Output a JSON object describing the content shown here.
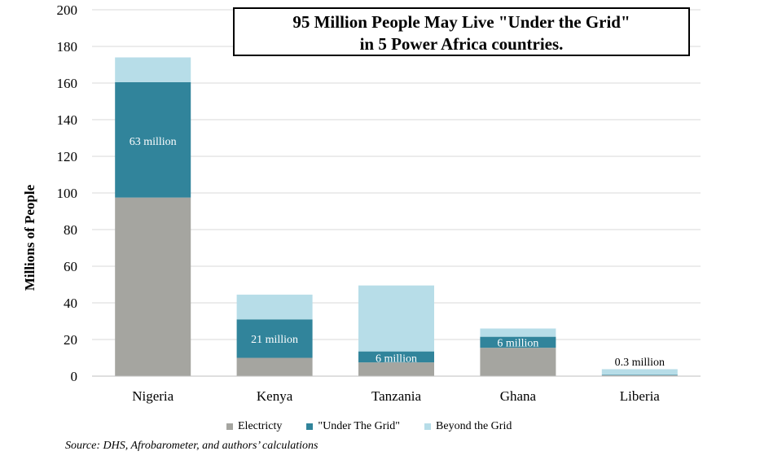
{
  "chart_data": {
    "type": "bar",
    "stacked": true,
    "title_lines": [
      "95 Million People May Live \"Under the Grid\"",
      "in 5 Power Africa countries."
    ],
    "ylabel": "Millions of People",
    "xlabel": "",
    "ylim": [
      0,
      200
    ],
    "yticks": [
      0,
      20,
      40,
      60,
      80,
      100,
      120,
      140,
      160,
      180,
      200
    ],
    "grid": true,
    "legend_position": "bottom",
    "categories": [
      "Nigeria",
      "Kenya",
      "Tanzania",
      "Ghana",
      "Liberia"
    ],
    "series": [
      {
        "name": "Electricty",
        "color": "#a5a5a0",
        "values": [
          97.5,
          10,
          7.5,
          15.5,
          0.5
        ]
      },
      {
        "name": "\"Under The Grid\"",
        "color": "#31849b",
        "values": [
          63,
          21,
          6,
          6,
          0.3
        ]
      },
      {
        "name": "Beyond the Grid",
        "color": "#b7dde8",
        "values": [
          13.5,
          13.5,
          36,
          4.5,
          3
        ]
      }
    ],
    "annotations": [
      {
        "category": "Nigeria",
        "text": "63 million",
        "y": 128.5,
        "color": "#ffffff"
      },
      {
        "category": "Kenya",
        "text": "21 million",
        "y": 20.5,
        "color": "#ffffff"
      },
      {
        "category": "Tanzania",
        "text": "6 million",
        "y": 10,
        "color": "#ffffff"
      },
      {
        "category": "Ghana",
        "text": "6 million",
        "y": 18.5,
        "color": "#ffffff"
      },
      {
        "category": "Liberia",
        "text": "0.3 million",
        "y": 8,
        "color": "#000000"
      }
    ],
    "source": "Source: DHS, Afrobarometer, and authors’ calculations"
  }
}
